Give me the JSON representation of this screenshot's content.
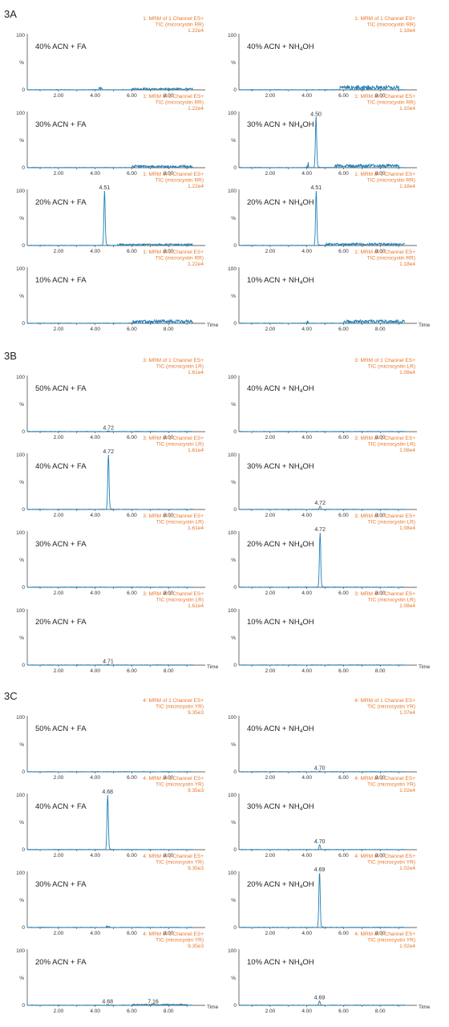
{
  "colors": {
    "trace": "#1f7fb8",
    "header": "#e8762b",
    "axis": "#333333"
  },
  "sections": [
    {
      "label": "3A",
      "panels": [
        {
          "col": 0,
          "row": 0,
          "condition_main": "40% ACN + FA",
          "condition_sub": "",
          "condition_tail": "",
          "header": [
            "1: MRM of 1 Channel ES+",
            "TIC (microcystin RR)",
            "1.22e4"
          ],
          "ticks": [
            "2.00",
            "4.00",
            "6.00",
            "8.00"
          ],
          "show_time": false,
          "peaks": [],
          "noise": [
            {
              "start": 4.2,
              "end": 4.4,
              "amp": 5
            },
            {
              "start": 6.0,
              "end": 9.5,
              "amp": 3
            }
          ]
        },
        {
          "col": 1,
          "row": 0,
          "condition_main": "40% ACN + NH",
          "condition_sub": "4",
          "condition_tail": "OH",
          "header": [
            "1: MRM of 1 Channel ES+",
            "TIC (microcystin RR)",
            "1.18e4"
          ],
          "ticks": [
            "2.00",
            "4.00",
            "6.00",
            "8.00"
          ],
          "show_time": false,
          "peaks": [],
          "noise": [
            {
              "start": 5.8,
              "end": 9.0,
              "amp": 8
            }
          ]
        },
        {
          "col": 0,
          "row": 1,
          "condition_main": "30% ACN + FA",
          "condition_sub": "",
          "condition_tail": "",
          "header": [
            "1: MRM of 1 Channel ES+",
            "TIC (microcystin RR)",
            "1.22e4"
          ],
          "ticks": [
            "2.00",
            "4.00",
            "6.00",
            "8.00"
          ],
          "show_time": false,
          "peaks": [],
          "noise": [
            {
              "start": 6.0,
              "end": 9.5,
              "amp": 4
            }
          ]
        },
        {
          "col": 1,
          "row": 1,
          "condition_main": "30% ACN + NH",
          "condition_sub": "4",
          "condition_tail": "OH",
          "header": [
            "1: MRM of 1 Channel ES+",
            "TIC (microcystin RR)",
            "1.10e4"
          ],
          "ticks": [
            "2.00",
            "4.00",
            "6.00",
            "8.00"
          ],
          "show_time": false,
          "peaks": [
            {
              "rt": 4.5,
              "height": 92,
              "label": "4.50"
            }
          ],
          "noise": [
            {
              "start": 4.0,
              "end": 4.1,
              "amp": 10
            },
            {
              "start": 5.5,
              "end": 9.0,
              "amp": 6
            }
          ]
        },
        {
          "col": 0,
          "row": 2,
          "condition_main": "20% ACN + FA",
          "condition_sub": "",
          "condition_tail": "",
          "header": [
            "1: MRM of 1 Channel ES+",
            "TIC (microcystin RR)",
            "1.22e4"
          ],
          "ticks": [
            "2.00",
            "4.00",
            "6.00",
            "8.00"
          ],
          "show_time": false,
          "peaks": [
            {
              "rt": 4.51,
              "height": 100,
              "label": "4.51"
            }
          ],
          "noise": [
            {
              "start": 5.2,
              "end": 9.5,
              "amp": 3
            }
          ]
        },
        {
          "col": 1,
          "row": 2,
          "condition_main": "20% ACN + NH",
          "condition_sub": "4",
          "condition_tail": "OH",
          "header": [
            "1: MRM of 1 Channel ES+",
            "TIC (microcystin RR)",
            "1.18e4"
          ],
          "ticks": [
            "2.00",
            "4.00",
            "6.00",
            "8.00"
          ],
          "show_time": false,
          "peaks": [
            {
              "rt": 4.51,
              "height": 100,
              "label": "4.51"
            }
          ],
          "noise": [
            {
              "start": 5.0,
              "end": 9.5,
              "amp": 4
            }
          ]
        },
        {
          "col": 0,
          "row": 3,
          "condition_main": "10% ACN + FA",
          "condition_sub": "",
          "condition_tail": "",
          "header": [
            "1: MRM of 1 Channel ES+",
            "TIC (microcystin RR)",
            "1.22e4"
          ],
          "ticks": [
            "2.00",
            "4.00",
            "6.00",
            "8.00"
          ],
          "show_time": true,
          "peaks": [],
          "noise": [
            {
              "start": 6.0,
              "end": 9.5,
              "amp": 6
            }
          ]
        },
        {
          "col": 1,
          "row": 3,
          "condition_main": "10% ACN + NH",
          "condition_sub": "4",
          "condition_tail": "OH",
          "header": [
            "1: MRM of 1 Channel ES+",
            "TIC (microcystin RR)",
            "1.18e4"
          ],
          "ticks": [
            "2.00",
            "4.00",
            "6.00",
            "8.00"
          ],
          "show_time": true,
          "peaks": [],
          "noise": [
            {
              "start": 4.0,
              "end": 4.1,
              "amp": 6
            },
            {
              "start": 6.0,
              "end": 9.5,
              "amp": 6
            }
          ]
        }
      ]
    },
    {
      "label": "3B",
      "panels": [
        {
          "col": 0,
          "row": 0,
          "condition_main": "50% ACN + FA",
          "condition_sub": "",
          "condition_tail": "",
          "header": [
            "3: MRM of 1 Channel ES+",
            "TIC (microcystin LR)",
            "1.61e4"
          ],
          "ticks": [
            "2.00",
            "4.00",
            "6.00",
            "8.00"
          ],
          "show_time": false,
          "peaks": [
            {
              "rt": 4.72,
              "height": 1,
              "label": "4.72"
            }
          ],
          "noise": []
        },
        {
          "col": 1,
          "row": 0,
          "condition_main": "40% ACN + NH",
          "condition_sub": "4",
          "condition_tail": "OH",
          "header": [
            "3: MRM of 1 Channel ES+",
            "TIC (microcystin LR)",
            "1.08e4"
          ],
          "ticks": [
            "2.00",
            "4.00",
            "6.00",
            "8.00"
          ],
          "show_time": false,
          "peaks": [],
          "noise": []
        },
        {
          "col": 0,
          "row": 1,
          "condition_main": "40% ACN + FA",
          "condition_sub": "",
          "condition_tail": "",
          "header": [
            "3: MRM of 1 Channel ES+",
            "TIC (microcystin LR)",
            "1.61e4"
          ],
          "ticks": [
            "2.00",
            "4.00",
            "6.00",
            "8.00"
          ],
          "show_time": false,
          "peaks": [
            {
              "rt": 4.72,
              "height": 100,
              "label": "4.72"
            }
          ],
          "noise": []
        },
        {
          "col": 1,
          "row": 1,
          "condition_main": "30% ACN + NH",
          "condition_sub": "4",
          "condition_tail": "OH",
          "header": [
            "3: MRM of 1 Channel ES+",
            "TIC (microcystin LR)",
            "1.08e4"
          ],
          "ticks": [
            "2.00",
            "4.00",
            "6.00",
            "8.00"
          ],
          "show_time": false,
          "peaks": [
            {
              "rt": 4.72,
              "height": 6,
              "label": "4.72"
            }
          ],
          "noise": []
        },
        {
          "col": 0,
          "row": 2,
          "condition_main": "30% ACN + FA",
          "condition_sub": "",
          "condition_tail": "",
          "header": [
            "3: MRM of 1 Channel ES+",
            "TIC (microcystin LR)",
            "1.61e4"
          ],
          "ticks": [
            "2.00",
            "4.00",
            "6.00",
            "8.00"
          ],
          "show_time": false,
          "peaks": [],
          "noise": []
        },
        {
          "col": 1,
          "row": 2,
          "condition_main": "20% ACN + NH",
          "condition_sub": "4",
          "condition_tail": "OH",
          "header": [
            "3: MRM of 1 Channel ES+",
            "TIC (microcystin LR)",
            "1.08e4"
          ],
          "ticks": [
            "2.00",
            "4.00",
            "6.00",
            "8.00"
          ],
          "show_time": false,
          "peaks": [
            {
              "rt": 4.72,
              "height": 100,
              "label": "4.72"
            }
          ],
          "noise": []
        },
        {
          "col": 0,
          "row": 3,
          "condition_main": "20% ACN + FA",
          "condition_sub": "",
          "condition_tail": "",
          "header": [
            "3: MRM of 1 Channel ES+",
            "TIC (microcystin LR)",
            "1.61e4"
          ],
          "ticks": [
            "2.00",
            "4.00",
            "6.00",
            "8.00"
          ],
          "show_time": true,
          "peaks": [
            {
              "rt": 4.71,
              "height": 1,
              "label": "4.71"
            }
          ],
          "noise": []
        },
        {
          "col": 1,
          "row": 3,
          "condition_main": "10% ACN + NH",
          "condition_sub": "4",
          "condition_tail": "OH",
          "header": [
            "3: MRM of 1 Channel ES+",
            "TIC (microcystin LR)",
            "1.08e4"
          ],
          "ticks": [
            "2.00",
            "4.00",
            "6.00",
            "8.00"
          ],
          "show_time": true,
          "peaks": [],
          "noise": []
        }
      ]
    },
    {
      "label": "3C",
      "panels": [
        {
          "col": 0,
          "row": 0,
          "condition_main": "50% ACN + FA",
          "condition_sub": "",
          "condition_tail": "",
          "header": [
            "4: MRM of 1 Channel ES+",
            "TIC (microcystin YR)",
            "9.35e3"
          ],
          "ticks": [
            "2.00",
            "4.00",
            "6.00",
            "8.00"
          ],
          "show_time": false,
          "peaks": [],
          "noise": []
        },
        {
          "col": 1,
          "row": 0,
          "condition_main": "40% ACN + NH",
          "condition_sub": "4",
          "condition_tail": "OH",
          "header": [
            "4: MRM of 1 Channel ES+",
            "TIC (microcystin YR)",
            "1.07e4"
          ],
          "ticks": [
            "2.00",
            "4.00",
            "6.00",
            "8.00"
          ],
          "show_time": false,
          "peaks": [
            {
              "rt": 4.7,
              "height": 1,
              "label": "4.70"
            }
          ],
          "noise": []
        },
        {
          "col": 0,
          "row": 1,
          "condition_main": "40% ACN + FA",
          "condition_sub": "",
          "condition_tail": "",
          "header": [
            "4: MRM of 1 Channel ES+",
            "TIC (microcystin YR)",
            "9.35e3"
          ],
          "ticks": [
            "2.00",
            "4.00",
            "6.00",
            "8.00"
          ],
          "show_time": false,
          "peaks": [
            {
              "rt": 4.68,
              "height": 100,
              "label": "4.68"
            }
          ],
          "noise": []
        },
        {
          "col": 1,
          "row": 1,
          "condition_main": "30% ACN + NH",
          "condition_sub": "4",
          "condition_tail": "OH",
          "header": [
            "4: MRM of 1 Channel ES+",
            "TIC (microcystin YR)",
            "1.02e4"
          ],
          "ticks": [
            "2.00",
            "4.00",
            "6.00",
            "8.00"
          ],
          "show_time": false,
          "peaks": [
            {
              "rt": 4.7,
              "height": 9,
              "label": "4.70"
            }
          ],
          "noise": []
        },
        {
          "col": 0,
          "row": 2,
          "condition_main": "30% ACN + FA",
          "condition_sub": "",
          "condition_tail": "",
          "header": [
            "4: MRM of 1 Channel ES+",
            "TIC (microcystin YR)",
            "9.35e3"
          ],
          "ticks": [
            "2.00",
            "4.00",
            "6.00",
            "8.00"
          ],
          "show_time": false,
          "peaks": [],
          "noise": [
            {
              "start": 4.6,
              "end": 4.8,
              "amp": 2
            }
          ]
        },
        {
          "col": 1,
          "row": 2,
          "condition_main": "20% ACN + NH",
          "condition_sub": "4",
          "condition_tail": "OH",
          "header": [
            "4: MRM of 1 Channel ES+",
            "TIC (microcystin YR)",
            "1.02e4"
          ],
          "ticks": [
            "2.00",
            "4.00",
            "6.00",
            "8.00"
          ],
          "show_time": false,
          "peaks": [
            {
              "rt": 4.69,
              "height": 100,
              "label": "4.69"
            }
          ],
          "noise": []
        },
        {
          "col": 0,
          "row": 3,
          "condition_main": "20% ACN + FA",
          "condition_sub": "",
          "condition_tail": "",
          "header": [
            "4: MRM of 1 Channel ES+",
            "TIC (microcystin YR)",
            "9.35e3"
          ],
          "ticks": [
            "2.00",
            "4.00",
            "6.00",
            "8.00"
          ],
          "show_time": true,
          "peaks": [
            {
              "rt": 4.68,
              "height": 1,
              "label": "4.68"
            },
            {
              "rt": 7.16,
              "height": 1,
              "label": "7.16"
            }
          ],
          "noise": [
            {
              "start": 6.0,
              "end": 9.0,
              "amp": 2
            }
          ]
        },
        {
          "col": 1,
          "row": 3,
          "condition_main": "10% ACN + NH",
          "condition_sub": "4",
          "condition_tail": "OH",
          "header": [
            "4: MRM of 1 Channel ES+",
            "TIC (microcystin YR)",
            "1.02e4"
          ],
          "ticks": [
            "2.00",
            "4.00",
            "6.00",
            "8.00"
          ],
          "show_time": true,
          "peaks": [
            {
              "rt": 4.69,
              "height": 8,
              "label": "4.69"
            }
          ],
          "noise": []
        }
      ]
    }
  ],
  "axis": {
    "y_max": "100",
    "y_min": "0",
    "y_mid": "%",
    "time_label": "Time"
  },
  "chart_data": {
    "type": "line",
    "description_units": {
      "x": "retention time (min)",
      "y": "relative intensity (%)"
    },
    "xlim": [
      0.3,
      10.0
    ],
    "ylim": [
      0,
      100
    ],
    "grid": false
  }
}
